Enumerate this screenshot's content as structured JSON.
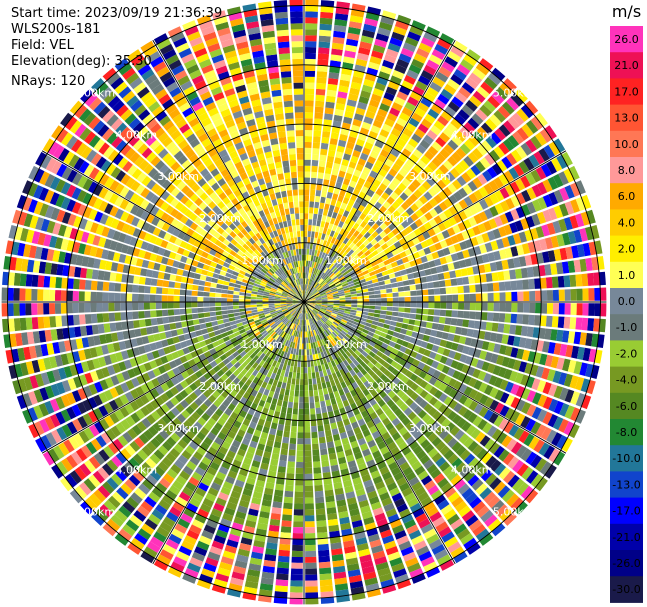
{
  "header": {
    "start_time": "Start time: 2023/09/19 21:36:39",
    "instrument": "WLS200s-181",
    "field": "Field: VEL",
    "elevation": "Elevation(deg): 35.30",
    "nrays": "NRays: 120"
  },
  "chart_data": {
    "type": "heatmap",
    "projection": "polar-ppi",
    "field": "VEL",
    "units": "m/s",
    "nrays": 120,
    "range_rings_km": [
      1,
      2,
      3,
      4,
      5
    ],
    "range_ring_labels": [
      "1.00km",
      "2.00km",
      "3.00km",
      "4.00km",
      "5.00km"
    ],
    "max_range_km": 5.1,
    "spokes_deg": [
      0,
      30,
      60,
      90,
      120,
      150,
      180,
      210,
      240,
      270,
      300,
      330
    ],
    "colorbar": {
      "title": "m/s",
      "ticks": [
        "26.0",
        "21.0",
        "17.0",
        "13.0",
        "10.0",
        "8.0",
        "6.0",
        "4.0",
        "2.0",
        "1.0",
        "0.0",
        "-1.0",
        "-2.0",
        "-4.0",
        "-6.0",
        "-8.0",
        "-10.0",
        "-13.0",
        "-17.0",
        "-21.0",
        "-26.0",
        "-30.0"
      ],
      "colors": [
        "#ff33bb",
        "#ee1155",
        "#ff2222",
        "#ff5533",
        "#ff7755",
        "#ff9999",
        "#ffaa00",
        "#ffcc00",
        "#ffee00",
        "#ffff55",
        "#778899",
        "#6b7b7b",
        "#99cc33",
        "#779922",
        "#558822",
        "#228833",
        "#227799",
        "#1144cc",
        "#0000ff",
        "#0000aa",
        "#000088",
        "#1a1a4a"
      ]
    },
    "pattern": {
      "near_field_km": [
        0,
        1.0
      ],
      "clear_field_km": [
        1.0,
        3.5
      ],
      "noisy_field_km": [
        3.5,
        5.1
      ],
      "north_sector": "positive velocities (yellow)",
      "south_sector": "negative velocities (green)",
      "east_west_sectors": "near zero (grey)"
    }
  }
}
